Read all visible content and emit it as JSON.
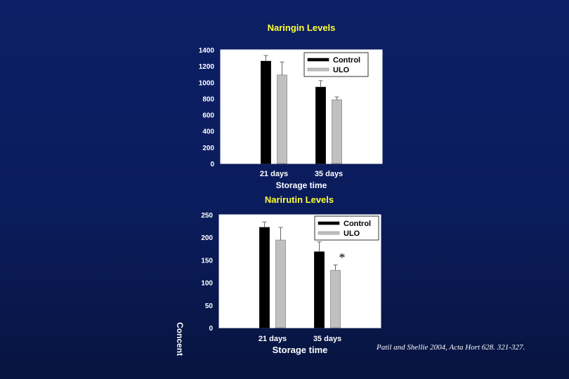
{
  "chart_data": [
    {
      "type": "bar",
      "title": "Naringin Levels",
      "xlabel": "Storage time",
      "ylabel": "",
      "categories": [
        "21 days",
        "35 days"
      ],
      "ylim": [
        0,
        1400
      ],
      "yticks": [
        0,
        200,
        400,
        600,
        800,
        1000,
        1200,
        1400
      ],
      "legend_position": "top-right",
      "grid": false,
      "series": [
        {
          "name": "Control",
          "color": "#000000",
          "values": [
            1260,
            940
          ],
          "errors": [
            70,
            80
          ]
        },
        {
          "name": "ULO",
          "color": "#c0c0c0",
          "values": [
            1090,
            785
          ],
          "errors": [
            160,
            35
          ]
        }
      ]
    },
    {
      "type": "bar",
      "title": "Narirutin Levels",
      "xlabel": "Storage time",
      "ylabel": "Concent",
      "categories": [
        "21 days",
        "35 days"
      ],
      "ylim": [
        0,
        250
      ],
      "yticks": [
        0,
        50,
        100,
        150,
        200,
        250
      ],
      "legend_position": "top-right",
      "grid": false,
      "annotation": "*",
      "series": [
        {
          "name": "Control",
          "color": "#000000",
          "values": [
            222,
            168
          ],
          "errors": [
            12,
            22
          ]
        },
        {
          "name": "ULO",
          "color": "#c0c0c0",
          "values": [
            194,
            127
          ],
          "errors": [
            28,
            12
          ]
        }
      ]
    }
  ],
  "citation": "Patil and Shellie 2004, Acta Hort 628. 321-327."
}
